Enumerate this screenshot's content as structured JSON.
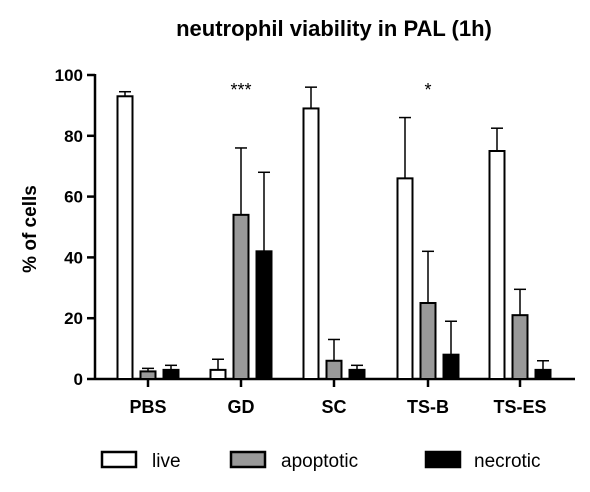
{
  "chart_data": {
    "type": "bar",
    "title": "neutrophil viability in PAL (1h)",
    "xlabel": "",
    "ylabel": "% of cells",
    "ylim": [
      0,
      100
    ],
    "yticks": [
      "0",
      "20",
      "40",
      "60",
      "80",
      "100"
    ],
    "categories": [
      "PBS",
      "GD",
      "SC",
      "TS-B",
      "TS-ES"
    ],
    "series": [
      {
        "name": "live",
        "fill": "#ffffff",
        "values": [
          93,
          3,
          89,
          66,
          75
        ],
        "errors": [
          1.5,
          3.5,
          7,
          20,
          7.5
        ]
      },
      {
        "name": "apoptotic",
        "fill": "#999999",
        "values": [
          2.5,
          54,
          6,
          25,
          21
        ],
        "errors": [
          1,
          22,
          7,
          17,
          8.5
        ]
      },
      {
        "name": "necrotic",
        "fill": "#000000",
        "values": [
          3,
          42,
          3,
          8,
          3
        ],
        "errors": [
          1.5,
          26,
          1.5,
          11,
          3
        ]
      }
    ],
    "annotations": [
      {
        "category": "GD",
        "text": "***"
      },
      {
        "category": "TS-B",
        "text": "*"
      }
    ],
    "legend_position": "bottom",
    "grid": false
  },
  "colors": {
    "axis": "#000000",
    "bar_stroke": "#000000"
  }
}
